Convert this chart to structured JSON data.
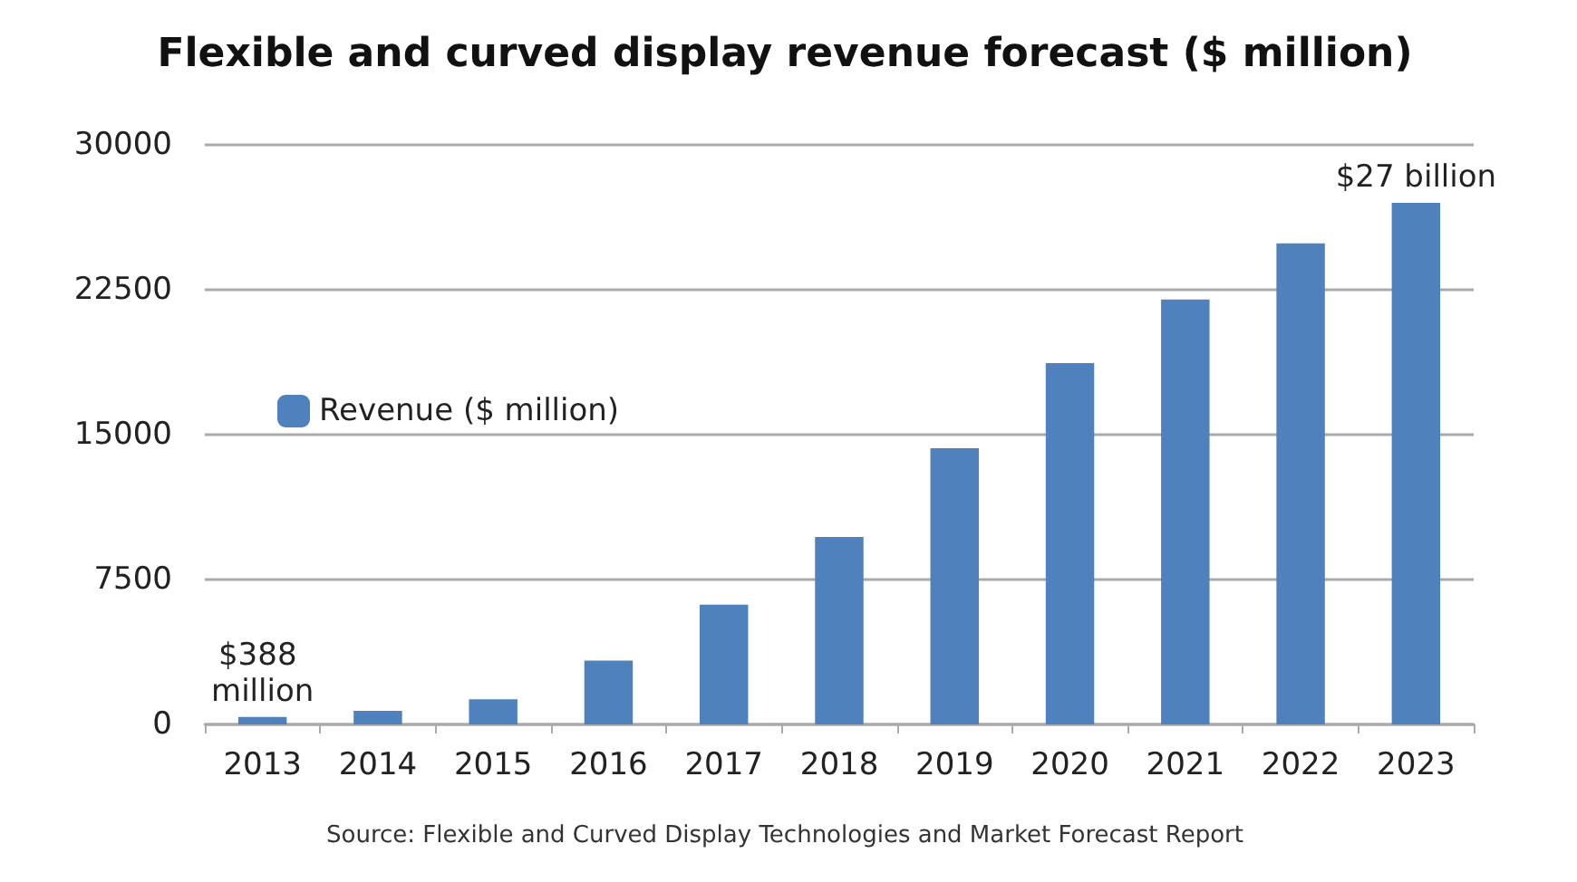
{
  "chart_data": {
    "type": "bar",
    "title": "Flexible and curved display revenue forecast ($ million)",
    "categories": [
      "2013",
      "2014",
      "2015",
      "2016",
      "2017",
      "2018",
      "2019",
      "2020",
      "2021",
      "2022",
      "2023"
    ],
    "series": [
      {
        "name": "Revenue ($ million)",
        "color": "#4f81bd",
        "values": [
          388,
          700,
          1300,
          3300,
          6200,
          9700,
          14300,
          18700,
          22000,
          24900,
          27000
        ]
      }
    ],
    "ylim": [
      0,
      30000
    ],
    "yticks": [
      0,
      7500,
      15000,
      22500,
      30000
    ],
    "grid": "y",
    "legend": "left",
    "annotations": [
      {
        "text": "$388 million",
        "x": "2013",
        "y": 388
      },
      {
        "text": "$27 billion",
        "x": "2023",
        "y": 27000
      },
      "Source: Flexible and Curved Display Technologies and Market Forecast Report"
    ]
  }
}
